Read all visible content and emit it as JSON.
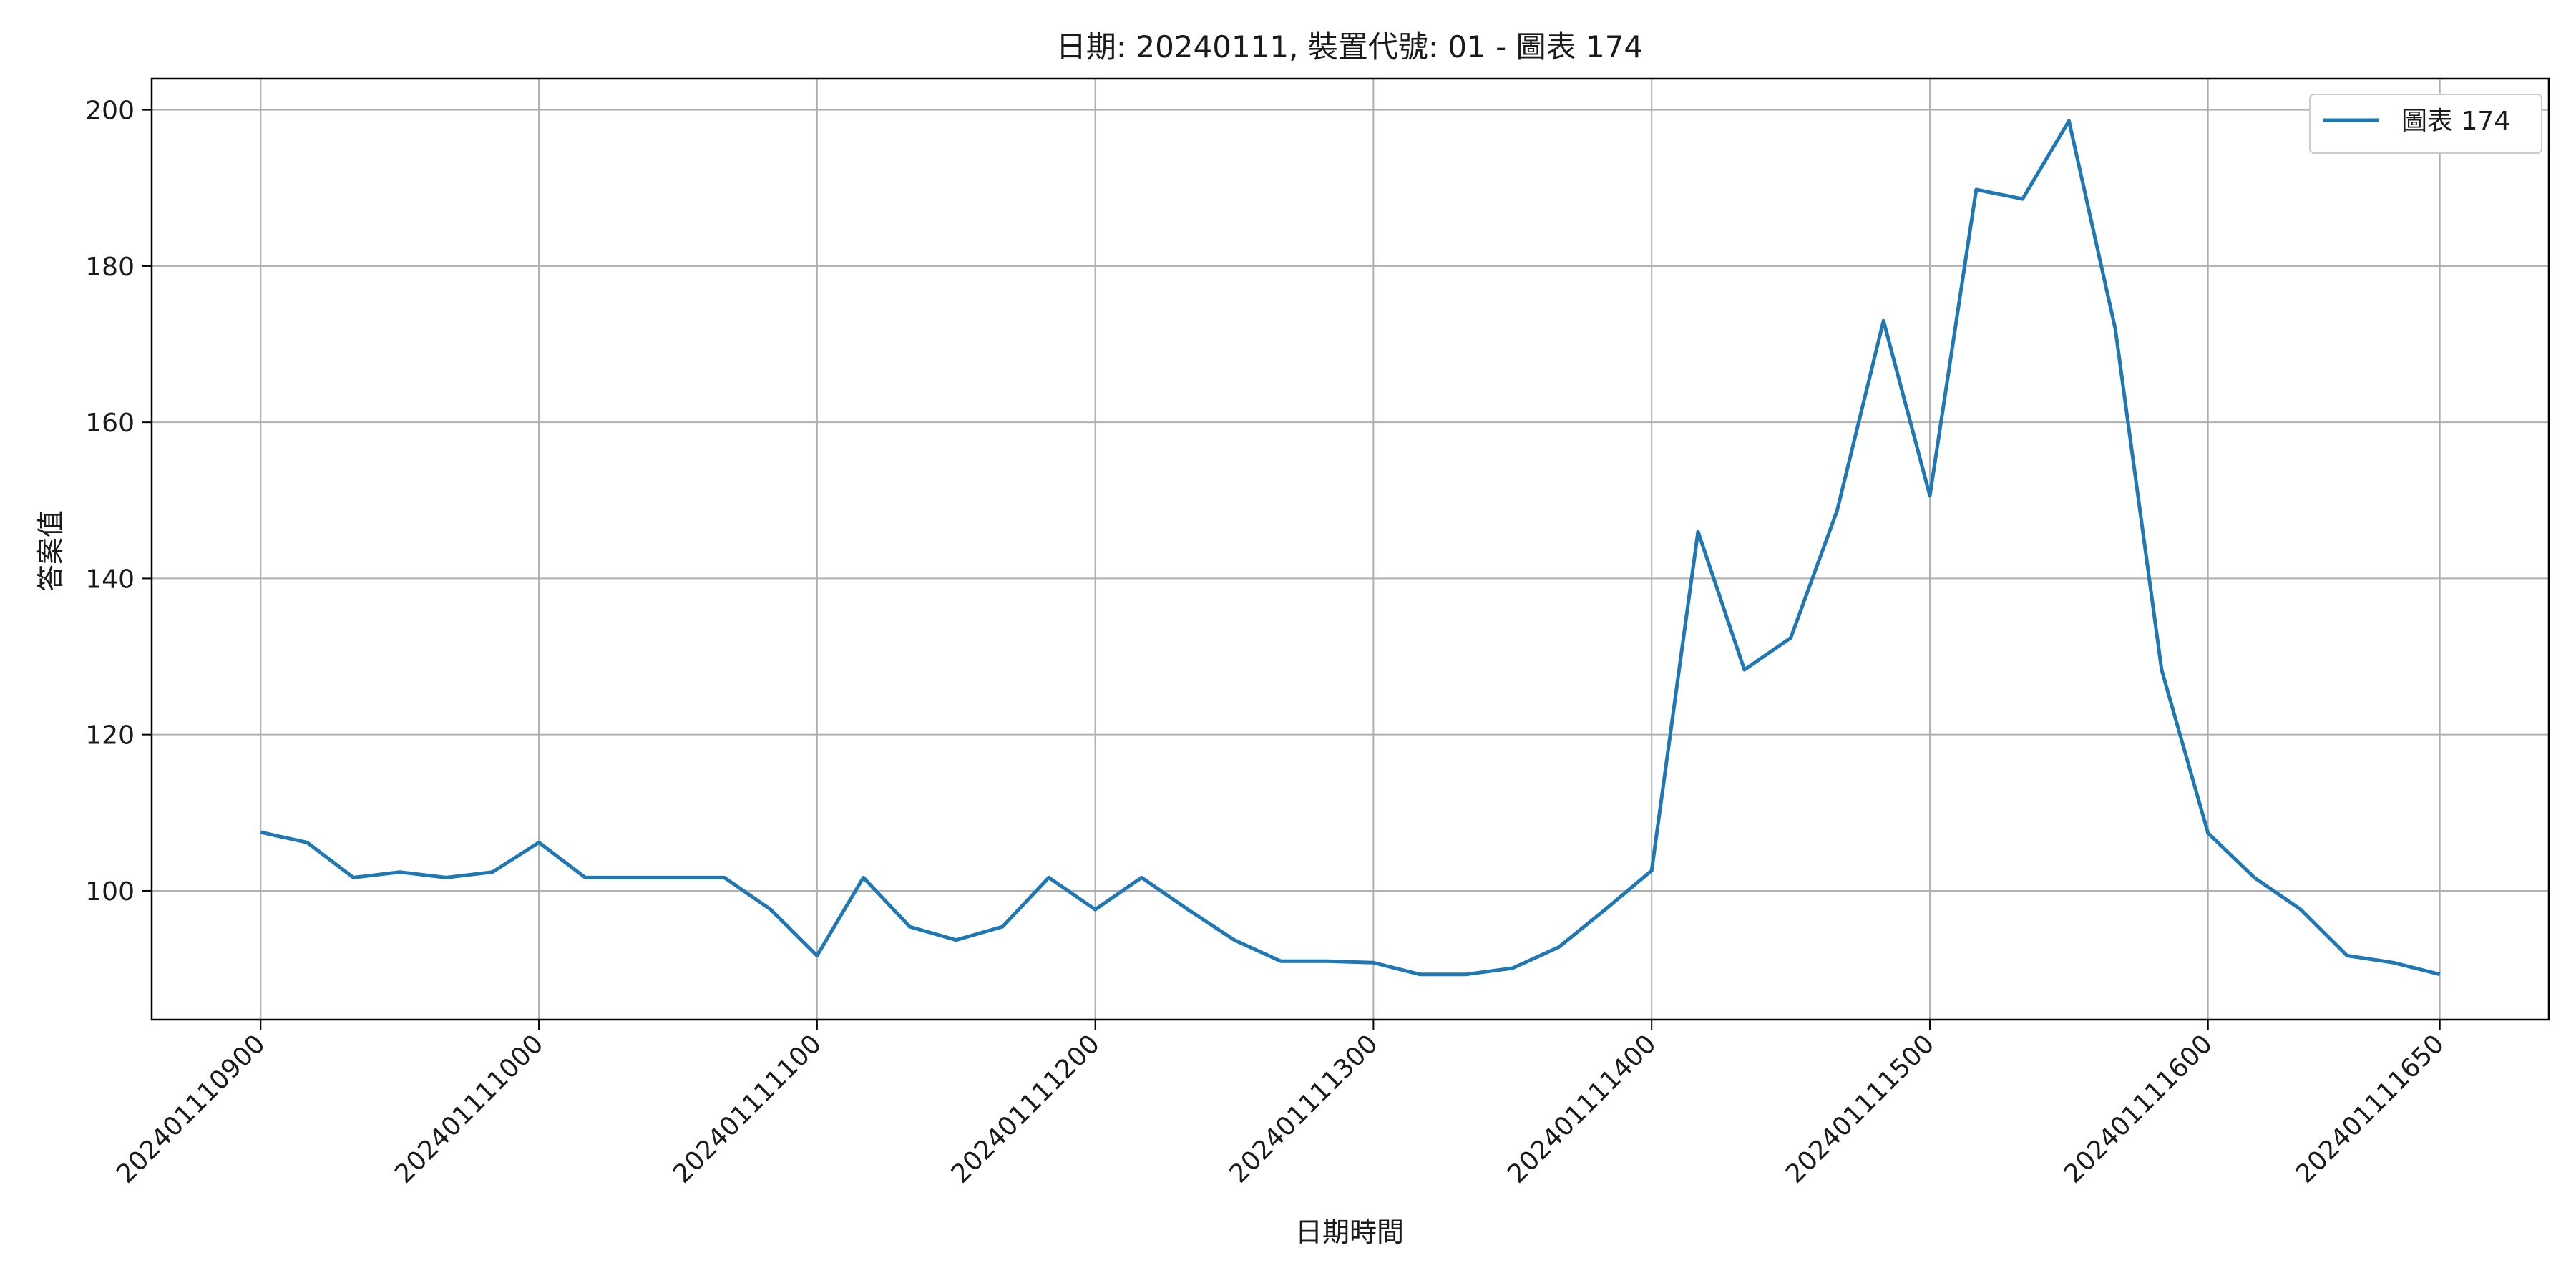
{
  "chart_data": {
    "type": "line",
    "title": "日期: 20240111, 裝置代號: 01 - 圖表 174",
    "xlabel": "日期時間",
    "ylabel": "答案值",
    "x_ticks": [
      "202401110900",
      "202401111000",
      "202401111100",
      "202401111200",
      "202401111300",
      "202401111400",
      "202401111500",
      "202401111600",
      "202401111650"
    ],
    "x_range_minutes": [
      -23.5,
      493.5
    ],
    "y_ticks": [
      100,
      120,
      140,
      160,
      180,
      200
    ],
    "ylim": [
      83.5,
      204
    ],
    "grid": true,
    "legend_position": "top-right",
    "series": [
      {
        "name": "圖表 174",
        "color": "#1f77b4",
        "x_minutes": [
          0,
          10,
          20,
          30,
          40,
          50,
          60,
          70,
          80,
          90,
          100,
          110,
          120,
          130,
          140,
          150,
          160,
          170,
          180,
          190,
          200,
          210,
          220,
          230,
          240,
          250,
          260,
          270,
          280,
          290,
          300,
          310,
          320,
          330,
          340,
          350,
          360,
          370,
          380,
          390,
          400,
          410,
          420,
          430,
          440,
          450,
          460,
          470
        ],
        "values": [
          107.5,
          106.2,
          101.7,
          102.4,
          101.7,
          102.4,
          106.2,
          101.7,
          101.7,
          101.7,
          101.7,
          97.6,
          91.7,
          101.7,
          95.4,
          93.7,
          95.4,
          101.7,
          97.6,
          101.7,
          97.6,
          93.7,
          91.0,
          91.0,
          90.8,
          89.3,
          89.3,
          90.1,
          92.8,
          97.6,
          102.6,
          146.0,
          128.3,
          132.4,
          148.7,
          173.0,
          150.6,
          189.8,
          188.6,
          198.6,
          172.0,
          128.3,
          107.4,
          101.7,
          97.6,
          91.7,
          90.8,
          89.3
        ]
      }
    ]
  }
}
